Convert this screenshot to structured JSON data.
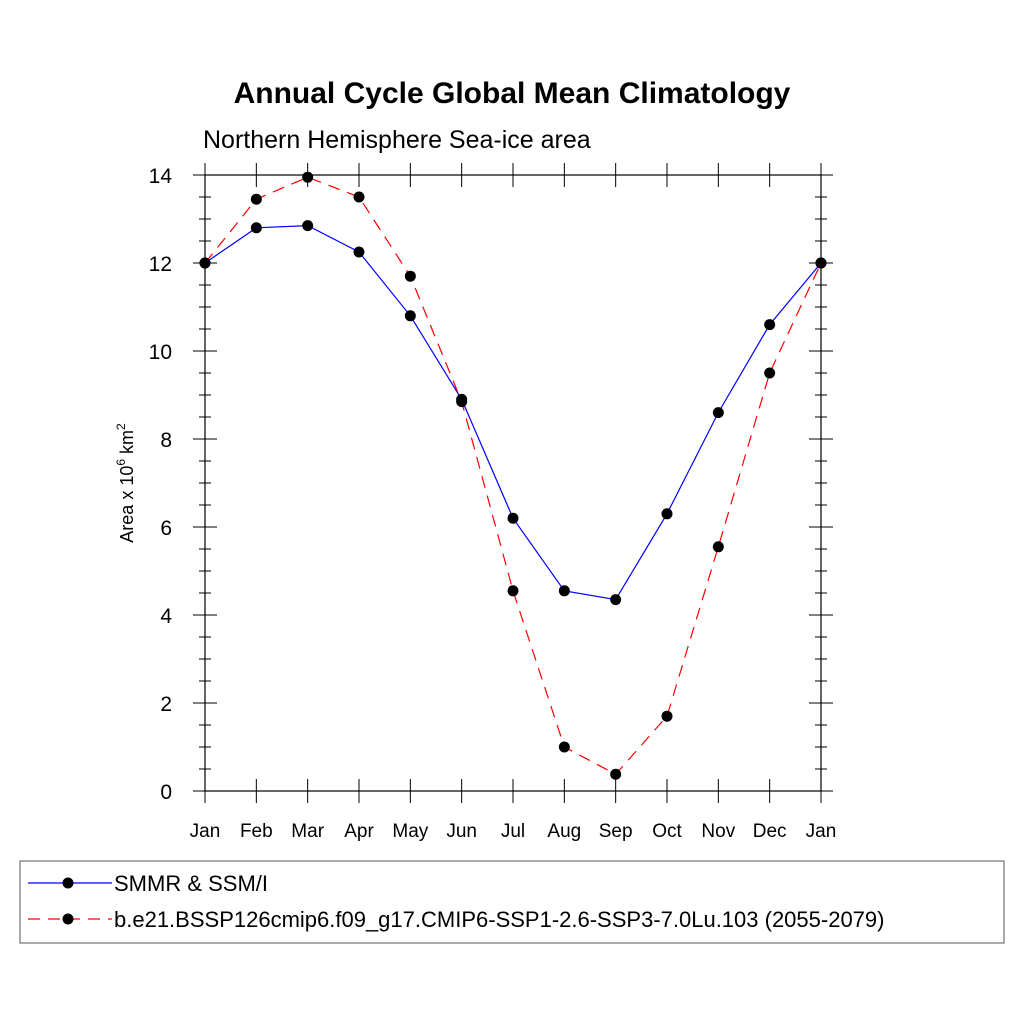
{
  "chart_data": {
    "type": "line",
    "title": "Annual Cycle Global Mean Climatology",
    "subtitle": "Northern Hemisphere Sea-ice area",
    "ylabel": {
      "prefix": "Area x 10",
      "exp": "6",
      "unit": " km",
      "unit_exp": "2"
    },
    "xlabel": "",
    "categories": [
      "Jan",
      "Feb",
      "Mar",
      "Apr",
      "May",
      "Jun",
      "Jul",
      "Aug",
      "Sep",
      "Oct",
      "Nov",
      "Dec",
      "Jan"
    ],
    "ylim": [
      0,
      14
    ],
    "yticks": [
      "0",
      "2",
      "4",
      "6",
      "8",
      "10",
      "12",
      "14"
    ],
    "grid": false,
    "series": [
      {
        "name": "SMMR & SSM/I",
        "color": "#0000ff",
        "line_style": "solid",
        "marker": "filled-circle",
        "values": [
          12.0,
          12.8,
          12.85,
          12.25,
          10.8,
          8.9,
          6.2,
          4.55,
          4.35,
          6.3,
          8.6,
          10.6,
          12.0
        ]
      },
      {
        "name": "b.e21.BSSP126cmip6.f09_g17.CMIP6-SSP1-2.6-SSP3-7.0Lu.103 (2055-2079)",
        "color": "#ff0000",
        "line_style": "dashed",
        "marker": "filled-circle",
        "values": [
          12.0,
          13.45,
          13.95,
          13.5,
          11.7,
          8.85,
          4.55,
          1.0,
          0.38,
          1.7,
          5.55,
          9.5,
          12.0
        ]
      }
    ],
    "legend": {
      "position": "bottom",
      "boxed": true
    }
  }
}
